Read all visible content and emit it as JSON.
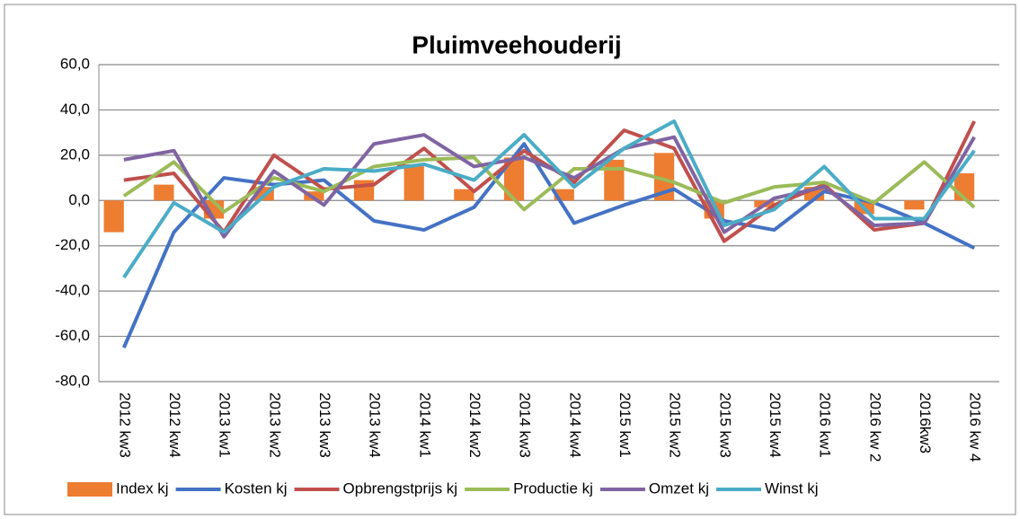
{
  "chart_data": {
    "type": "combo",
    "title": "Pluimveehouderij",
    "categories": [
      "2012 kw3",
      "2012 kw4",
      "2013 kw1",
      "2013 kw2",
      "2013 kw3",
      "2013 kw4",
      "2014 kw1",
      "2014 kw2",
      "2014 kw3",
      "2014 kw4",
      "2015 kw1",
      "2015 kw2",
      "2015 kw3",
      "2015 kw4",
      "2016 kw1",
      "2016 kw 2",
      "2016kw3",
      "2016 kw 4"
    ],
    "series": [
      {
        "name": "Index kj",
        "type": "bar",
        "color": "#ed7d31",
        "values": [
          -14,
          7,
          -8,
          6,
          4,
          9,
          16,
          5,
          19,
          5,
          18,
          21,
          -8,
          -3,
          6,
          -6,
          -4,
          12
        ]
      },
      {
        "name": "Kosten kj",
        "type": "line",
        "color": "#4472c4",
        "values": [
          -65,
          -14,
          10,
          7,
          9,
          -9,
          -13,
          -3,
          25,
          -10,
          -2,
          5,
          -9,
          -13,
          4,
          -1,
          -10,
          -21
        ]
      },
      {
        "name": "Opbrengstprijs kj",
        "type": "line",
        "color": "#c0504d",
        "values": [
          9,
          12,
          -14,
          20,
          5,
          7,
          23,
          4,
          22,
          8,
          31,
          23,
          -18,
          -2,
          7,
          -13,
          -10,
          35
        ]
      },
      {
        "name": "Productie kj",
        "type": "line",
        "color": "#9bbb59",
        "values": [
          2,
          17,
          -5,
          10,
          4,
          15,
          18,
          19,
          -4,
          14,
          14,
          8,
          -1,
          6,
          8,
          -1,
          17,
          -3
        ]
      },
      {
        "name": "Omzet kj",
        "type": "line",
        "color": "#8064a2",
        "values": [
          18,
          22,
          -16,
          13,
          -2,
          25,
          29,
          15,
          19,
          10,
          23,
          28,
          -14,
          1,
          6,
          -11,
          -10,
          28
        ]
      },
      {
        "name": "Winst kj",
        "type": "line",
        "color": "#4bacc6",
        "values": [
          -34,
          -1,
          -14,
          6,
          14,
          13,
          16,
          9,
          29,
          6,
          23,
          35,
          -11,
          -4,
          15,
          -8,
          -8,
          22
        ]
      }
    ],
    "ylim": [
      -80,
      60
    ],
    "yticks": [
      {
        "value": -80,
        "label": "-80,0"
      },
      {
        "value": -60,
        "label": "-60,0"
      },
      {
        "value": -40,
        "label": "-40,0"
      },
      {
        "value": -20,
        "label": "-20,0"
      },
      {
        "value": 0,
        "label": "0,0"
      },
      {
        "value": 20,
        "label": "20,0"
      },
      {
        "value": 40,
        "label": "40,0"
      },
      {
        "value": 60,
        "label": "60,0"
      }
    ],
    "grid": true
  }
}
